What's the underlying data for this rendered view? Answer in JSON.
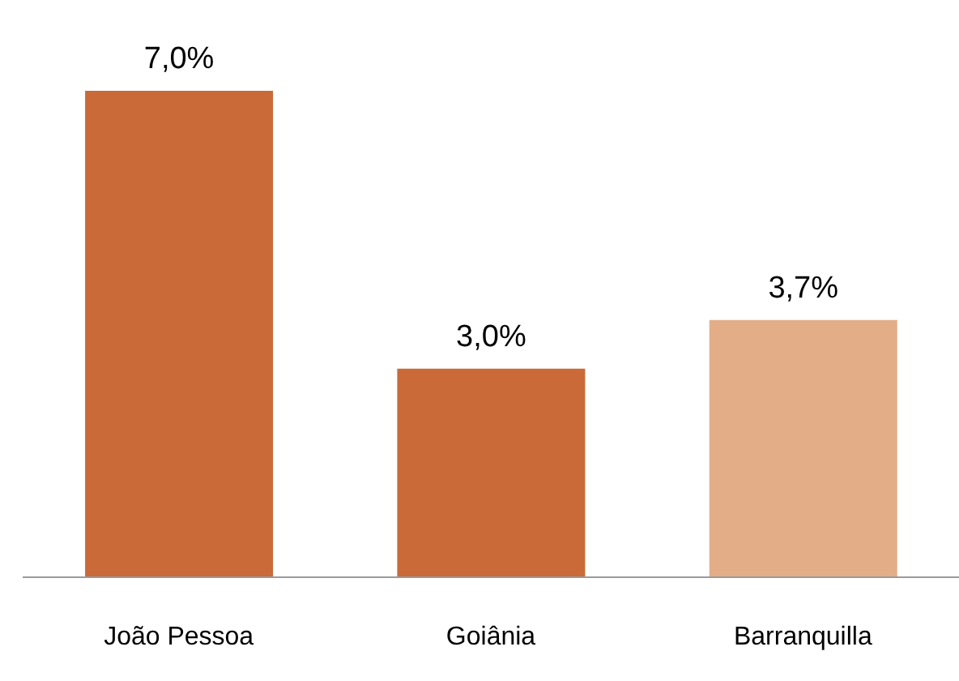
{
  "chart_data": {
    "type": "bar",
    "categories": [
      "João Pessoa",
      "Goiânia",
      "Barranquilla"
    ],
    "values": [
      7.0,
      3.0,
      3.7
    ],
    "colors": [
      "#c96a38",
      "#c96a38",
      "#e3ad88"
    ],
    "value_labels": [
      "7,0%",
      "3,0%",
      "3,7%"
    ],
    "tick_labels": "x"
  }
}
